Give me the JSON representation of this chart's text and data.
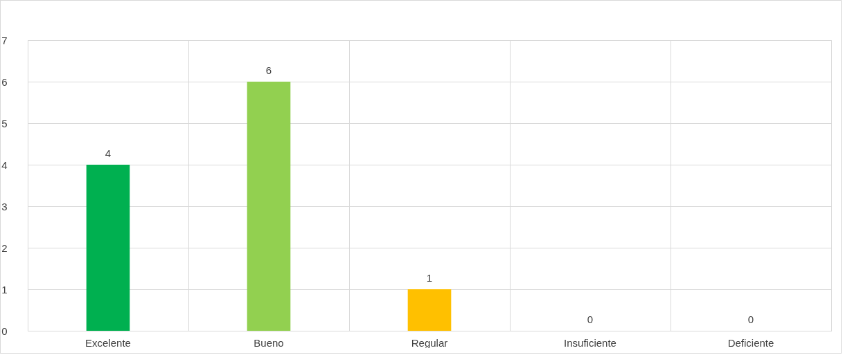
{
  "chart_data": {
    "type": "bar",
    "categories": [
      "Excelente",
      "Bueno",
      "Regular",
      "Insuficiente",
      "Deficiente"
    ],
    "values": [
      4,
      6,
      1,
      0,
      0
    ],
    "colors": [
      "#00b050",
      "#92d050",
      "#ffc000",
      "#ffc000",
      "#ffc000"
    ],
    "ylim": [
      0,
      7
    ],
    "yticks": [
      0,
      1,
      2,
      3,
      4,
      5,
      6,
      7
    ],
    "grid": true,
    "data_labels": true
  }
}
